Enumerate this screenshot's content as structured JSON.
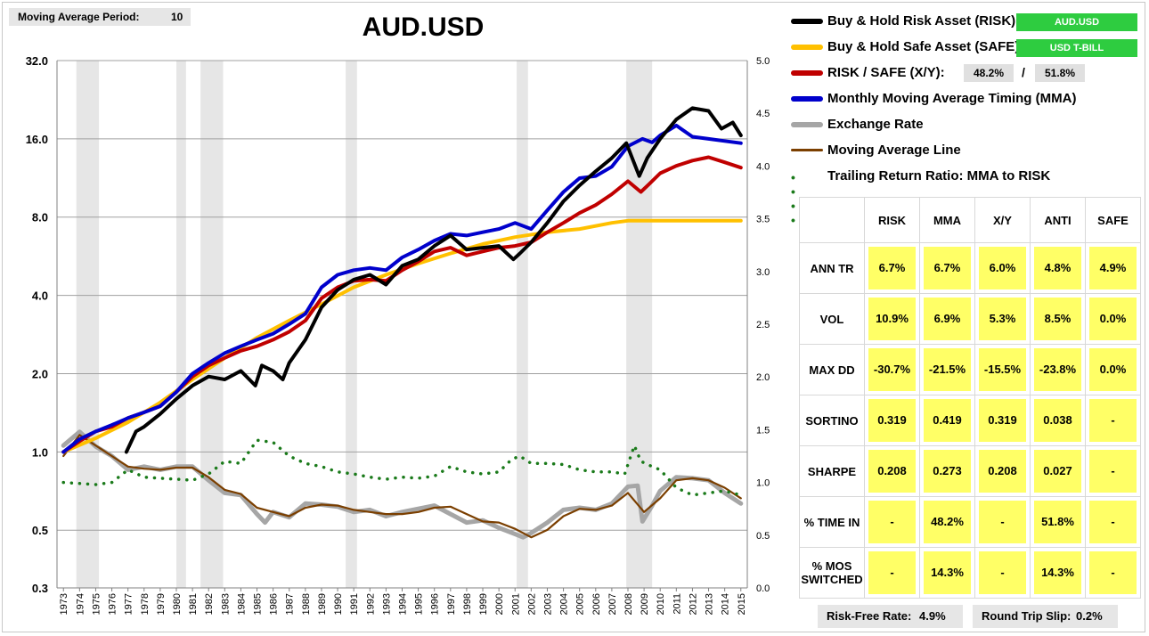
{
  "settings": {
    "period_label": "Moving Average Period:",
    "period_value": "10"
  },
  "chart_data": {
    "type": "line",
    "title": "AUD.USD",
    "x_ticks": [
      "1973",
      "1974",
      "1975",
      "1976",
      "1977",
      "1978",
      "1979",
      "1980",
      "1981",
      "1982",
      "1983",
      "1984",
      "1985",
      "1986",
      "1987",
      "1988",
      "1989",
      "1990",
      "1991",
      "1992",
      "1993",
      "1994",
      "1995",
      "1996",
      "1997",
      "1998",
      "1999",
      "2000",
      "2001",
      "2002",
      "2003",
      "2004",
      "2005",
      "2006",
      "2007",
      "2008",
      "2009",
      "2010",
      "2011",
      "2012",
      "2013",
      "2014",
      "2015"
    ],
    "y_left_ticks": [
      "32.0",
      "16.0",
      "8.0",
      "4.0",
      "2.0",
      "1.0",
      "0.5",
      "0.3"
    ],
    "y_right_ticks": [
      "5.0",
      "4.5",
      "4.0",
      "3.5",
      "3.0",
      "2.5",
      "2.0",
      "1.5",
      "1.0",
      "0.5",
      "0.0"
    ],
    "y_left_scale": "log",
    "grid": true,
    "recession_bands": [
      [
        1973.8,
        1975.2
      ],
      [
        1980.0,
        1980.6
      ],
      [
        1981.5,
        1982.9
      ],
      [
        1990.5,
        1991.2
      ],
      [
        2001.1,
        2001.8
      ],
      [
        2007.9,
        2009.5
      ]
    ],
    "series": [
      {
        "name": "Buy & Hold Risk Asset (RISK):",
        "color": "#000000",
        "axis": "left",
        "x": [
          1976.9,
          1977.5,
          1978,
          1979,
          1980,
          1981,
          1982,
          1983,
          1984,
          1984.9,
          1985.3,
          1986,
          1986.6,
          1987,
          1988,
          1989,
          1990,
          1991,
          1992,
          1993,
          1994,
          1995,
          1996,
          1997,
          1998,
          1999,
          2000,
          2000.9,
          2001.3,
          2002,
          2003,
          2004,
          2005,
          2006,
          2007,
          2007.9,
          2008.7,
          2009.2,
          2010,
          2011,
          2012,
          2013,
          2013.8,
          2014.5,
          2015
        ],
        "y": [
          1.0,
          1.2,
          1.25,
          1.4,
          1.6,
          1.8,
          1.95,
          1.9,
          2.05,
          1.8,
          2.15,
          2.05,
          1.9,
          2.2,
          2.7,
          3.6,
          4.2,
          4.6,
          4.8,
          4.4,
          5.2,
          5.5,
          6.2,
          6.8,
          6.0,
          6.1,
          6.2,
          5.5,
          5.8,
          6.4,
          7.6,
          9.2,
          10.6,
          12.0,
          13.5,
          15.4,
          11.5,
          13.5,
          16.0,
          19.0,
          21.0,
          20.5,
          17.5,
          18.5,
          16.5
        ]
      },
      {
        "name": "Buy & Hold Safe Asset (SAFE):",
        "color": "#ffc000",
        "axis": "left",
        "x": [
          1973,
          1975,
          1977,
          1979,
          1981,
          1983,
          1985,
          1987,
          1989,
          1991,
          1993,
          1995,
          1997,
          1999,
          2001,
          2003,
          2005,
          2007,
          2008,
          2015
        ],
        "y": [
          1.0,
          1.13,
          1.3,
          1.55,
          1.9,
          2.3,
          2.75,
          3.2,
          3.7,
          4.3,
          4.8,
          5.3,
          5.8,
          6.3,
          6.7,
          7.0,
          7.2,
          7.6,
          7.75,
          7.75
        ]
      },
      {
        "name": "RISK / SAFE (X/Y):",
        "color": "#c00000",
        "axis": "left",
        "x": [
          1973,
          1974,
          1975,
          1976,
          1977,
          1978,
          1979,
          1980,
          1981,
          1982,
          1983,
          1984,
          1985,
          1986,
          1987,
          1988,
          1989,
          1990,
          1991,
          1992,
          1993,
          1994,
          1995,
          1996,
          1997,
          1998,
          1999,
          2000,
          2001,
          2002,
          2003,
          2004,
          2005,
          2006,
          2007,
          2008,
          2008.8,
          2009.3,
          2010,
          2011,
          2012,
          2013,
          2014,
          2015
        ],
        "y": [
          1.0,
          1.1,
          1.2,
          1.25,
          1.35,
          1.42,
          1.5,
          1.7,
          1.95,
          2.15,
          2.3,
          2.45,
          2.55,
          2.7,
          2.9,
          3.2,
          3.9,
          4.3,
          4.55,
          4.6,
          4.55,
          5.0,
          5.4,
          5.9,
          6.1,
          5.7,
          5.9,
          6.1,
          6.2,
          6.4,
          7.0,
          7.6,
          8.3,
          8.9,
          9.8,
          11.0,
          10.0,
          10.7,
          11.8,
          12.6,
          13.2,
          13.6,
          13.0,
          12.4
        ]
      },
      {
        "name": "Monthly Moving Average Timing (MMA)",
        "color": "#0000cc",
        "axis": "left",
        "x": [
          1973,
          1974,
          1975,
          1976,
          1977,
          1978,
          1979,
          1980,
          1981,
          1982,
          1983,
          1984,
          1985,
          1986,
          1987,
          1988,
          1989,
          1990,
          1991,
          1992,
          1993,
          1994,
          1995,
          1996,
          1997,
          1998,
          1999,
          2000,
          2001,
          2002,
          2003,
          2004,
          2005,
          2006,
          2007,
          2008,
          2008.9,
          2009.5,
          2010,
          2011,
          2012,
          2013,
          2014,
          2015
        ],
        "y": [
          1.0,
          1.12,
          1.2,
          1.27,
          1.35,
          1.42,
          1.5,
          1.7,
          2.0,
          2.2,
          2.4,
          2.55,
          2.7,
          2.85,
          3.1,
          3.4,
          4.3,
          4.8,
          5.0,
          5.1,
          5.0,
          5.6,
          6.0,
          6.5,
          6.9,
          6.8,
          7.0,
          7.2,
          7.6,
          7.2,
          8.5,
          10.0,
          11.3,
          11.5,
          12.5,
          15.0,
          16.0,
          15.5,
          16.5,
          18.0,
          16.3,
          16.0,
          15.7,
          15.4
        ]
      },
      {
        "name": "Exchange Rate",
        "color": "#a6a6a6",
        "axis": "right",
        "x": [
          1973,
          1974,
          1975,
          1976,
          1977,
          1978,
          1979,
          1980,
          1981,
          1982,
          1983,
          1984,
          1985,
          1985.5,
          1986,
          1987,
          1988,
          1989,
          1990,
          1991,
          1992,
          1993,
          1994,
          1995,
          1996,
          1997,
          1998,
          1999,
          2000,
          2001,
          2001.5,
          2002,
          2003,
          2004,
          2005,
          2006,
          2007,
          2008,
          2008.6,
          2008.9,
          2009.5,
          2010,
          2011,
          2012,
          2013,
          2014,
          2015
        ],
        "y": [
          1.35,
          1.48,
          1.34,
          1.25,
          1.12,
          1.15,
          1.12,
          1.15,
          1.15,
          1.02,
          0.9,
          0.88,
          0.7,
          0.62,
          0.72,
          0.67,
          0.8,
          0.79,
          0.77,
          0.72,
          0.74,
          0.68,
          0.72,
          0.75,
          0.78,
          0.7,
          0.62,
          0.64,
          0.57,
          0.51,
          0.48,
          0.52,
          0.62,
          0.74,
          0.76,
          0.74,
          0.8,
          0.96,
          0.97,
          0.63,
          0.78,
          0.92,
          1.05,
          1.04,
          1.02,
          0.9,
          0.8
        ]
      },
      {
        "name": "Moving Average Line",
        "color": "#7b3f00",
        "axis": "right",
        "x": [
          1973,
          1974,
          1975,
          1976,
          1977,
          1978,
          1979,
          1980,
          1981,
          1982,
          1983,
          1984,
          1985,
          1986,
          1987,
          1988,
          1989,
          1990,
          1991,
          1992,
          1993,
          1994,
          1995,
          1996,
          1997,
          1998,
          1999,
          2000,
          2001,
          2002,
          2003,
          2004,
          2005,
          2006,
          2007,
          2008,
          2009,
          2010,
          2011,
          2012,
          2013,
          2014,
          2015
        ],
        "y": [
          1.25,
          1.45,
          1.35,
          1.25,
          1.15,
          1.13,
          1.12,
          1.14,
          1.14,
          1.05,
          0.93,
          0.89,
          0.76,
          0.72,
          0.68,
          0.76,
          0.79,
          0.78,
          0.74,
          0.72,
          0.7,
          0.7,
          0.72,
          0.76,
          0.77,
          0.7,
          0.63,
          0.62,
          0.56,
          0.48,
          0.55,
          0.68,
          0.75,
          0.74,
          0.78,
          0.9,
          0.72,
          0.85,
          1.02,
          1.04,
          1.02,
          0.95,
          0.85
        ]
      },
      {
        "name": "Trailing Return Ratio: MMA to RISK",
        "color": "#1a7a1a",
        "axis": "right",
        "style": "dotted",
        "x": [
          1973,
          1975,
          1976,
          1977,
          1978,
          1979,
          1980,
          1981,
          1982,
          1983,
          1984,
          1985,
          1986,
          1987,
          1988,
          1989,
          1990,
          1991,
          1992,
          1993,
          1994,
          1995,
          1996,
          1997,
          1998,
          1999,
          2000,
          2000.8,
          2001.3,
          2002,
          2003,
          2004,
          2005,
          2006,
          2007,
          2007.8,
          2008.4,
          2008.8,
          2009.5,
          2010,
          2011,
          2012,
          2013,
          2014,
          2015
        ],
        "y": [
          1.0,
          0.98,
          1.0,
          1.12,
          1.05,
          1.04,
          1.03,
          1.02,
          1.08,
          1.2,
          1.18,
          1.4,
          1.38,
          1.25,
          1.18,
          1.15,
          1.1,
          1.08,
          1.05,
          1.03,
          1.05,
          1.04,
          1.06,
          1.15,
          1.1,
          1.08,
          1.1,
          1.22,
          1.25,
          1.18,
          1.18,
          1.17,
          1.12,
          1.1,
          1.1,
          1.08,
          1.35,
          1.2,
          1.15,
          1.12,
          0.95,
          0.88,
          0.9,
          0.92,
          0.88
        ]
      }
    ]
  },
  "legend": {
    "risk_label": "Buy & Hold Risk Asset (RISK):",
    "risk_badge": "AUD.USD",
    "safe_label": "Buy & Hold Safe Asset (SAFE):",
    "safe_badge": "USD T-BILL",
    "ratio_label": "RISK / SAFE (X/Y):",
    "ratio_risk": "48.2%",
    "ratio_sep": "/",
    "ratio_safe": "51.8%",
    "mma_label": "Monthly Moving Average Timing (MMA)",
    "fx_label": "Exchange Rate",
    "ma_label": "Moving Average Line",
    "trr_label": "Trailing Return Ratio: MMA to RISK",
    "trr_dots": "• • • •"
  },
  "stats": {
    "headers": [
      "RISK",
      "MMA",
      "X/Y",
      "ANTI",
      "SAFE"
    ],
    "rows": [
      {
        "label": "ANN TR",
        "values": [
          "6.7%",
          "6.7%",
          "6.0%",
          "4.8%",
          "4.9%"
        ]
      },
      {
        "label": "VOL",
        "values": [
          "10.9%",
          "6.9%",
          "5.3%",
          "8.5%",
          "0.0%"
        ]
      },
      {
        "label": "MAX DD",
        "values": [
          "-30.7%",
          "-21.5%",
          "-15.5%",
          "-23.8%",
          "0.0%"
        ]
      },
      {
        "label": "SORTINO",
        "values": [
          "0.319",
          "0.419",
          "0.319",
          "0.038",
          "-"
        ]
      },
      {
        "label": "SHARPE",
        "values": [
          "0.208",
          "0.273",
          "0.208",
          "0.027",
          "-"
        ]
      },
      {
        "label": "% TIME IN",
        "values": [
          "-",
          "48.2%",
          "-",
          "51.8%",
          "-"
        ]
      },
      {
        "label": "% MOS SWITCHED",
        "values": [
          "-",
          "14.3%",
          "-",
          "14.3%",
          "-"
        ]
      }
    ]
  },
  "footer": {
    "risk_free_label": "Risk-Free Rate:",
    "risk_free_value": "4.9%",
    "slip_label": "Round Trip Slip:",
    "slip_value": "0.2%"
  }
}
